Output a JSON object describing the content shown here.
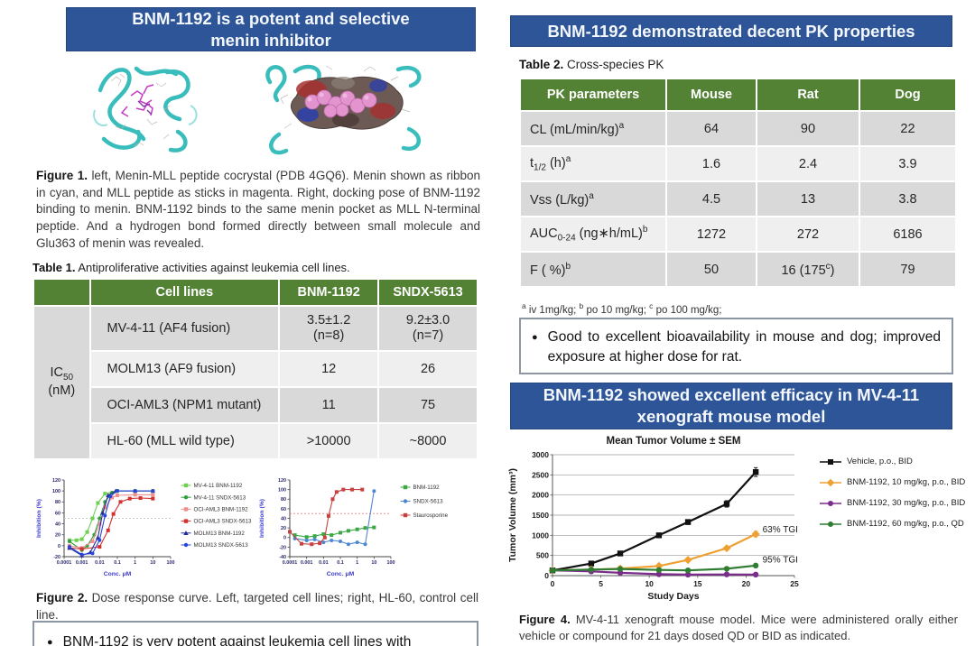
{
  "poster": {
    "colors": {
      "header_blue": "#2E5597",
      "table_green": "#548235",
      "row_dark": "#d9d9d9",
      "row_light": "#efefef"
    },
    "left": {
      "section1_title": "BNM-1192 is a potent and selective menin inhibitor",
      "figure1": {
        "label": "Figure 1.",
        "text": "left, Menin-MLL peptide cocrystal (PDB 4GQ6). Menin shown as ribbon in cyan, and MLL peptide as sticks in magenta. Right, docking pose of BNM-1192 binding to menin. BNM-1192 binds to the same menin pocket as MLL N-terminal peptide. And a hydrogen bond formed directly between small molecule and Glu363 of menin was revealed."
      },
      "table1": {
        "label": "Table 1.",
        "caption": "Antiproliferative activities against leukemia cell lines.",
        "group_label": "IC~50~ (nM)",
        "headers": [
          "",
          "Cell lines",
          "BNM-1192",
          "SNDX-5613"
        ],
        "rows": [
          [
            "MV-4-11 (AF4 fusion)",
            "3.5±1.2\n(n=8)",
            "9.2±3.0\n(n=7)"
          ],
          [
            "MOLM13 (AF9 fusion)",
            "12",
            "26"
          ],
          [
            "OCI-AML3 (NPM1 mutant)",
            "11",
            "75"
          ],
          [
            "HL-60 (MLL wild type)",
            ">10000",
            "~8000"
          ]
        ]
      },
      "figure2": {
        "label": "Figure 2.",
        "text": "Dose response curve. Left, targeted cell lines; right, HL-60, control cell line."
      },
      "bullet": {
        "symbol": "●",
        "text": "BNM-1192 is very potent against leukemia cell lines with"
      }
    },
    "right": {
      "section2_title": "BNM-1192 demonstrated decent PK properties",
      "table2": {
        "label": "Table 2.",
        "caption": "Cross-species PK",
        "headers": [
          "PK parameters",
          "Mouse",
          "Rat",
          "Dog"
        ],
        "rows": [
          [
            "CL (mL/min/kg)^a^",
            "64",
            "90",
            "22"
          ],
          [
            "t~1/2~ (h)^a^",
            "1.6",
            "2.4",
            "3.9"
          ],
          [
            "Vss (L/kg)^a^",
            "4.5",
            "13",
            "3.8"
          ],
          [
            "AUC~0-24~ (ng∗h/mL)^b^",
            "1272",
            "272",
            "6186"
          ],
          [
            "F ( %)^b^",
            "50",
            "16 (175^c^)",
            "79"
          ]
        ],
        "footnote": "^a^ iv 1mg/kg; ^b^ po 10 mg/kg; ^c^ po 100 mg/kg;"
      },
      "bullet": {
        "symbol": "●",
        "text": "Good to excellent bioavailability in mouse and dog; improved exposure at higher dose for rat."
      },
      "section3_title": "BNM-1192 showed excellent efficacy in MV-4-11 xenograft mouse model",
      "figure4": {
        "label": "Figure 4.",
        "text": "MV-4-11 xenograft mouse model. Mice were administered orally either vehicle or compound for 21 days dosed QD or BID as indicated."
      }
    }
  },
  "chart_data": [
    {
      "id": "dose_targeted",
      "type": "line",
      "title": "",
      "xlabel": "Conc. μM",
      "ylabel": "Inhibition (%)",
      "x_scale": "log",
      "xlim": [
        0.0001,
        100
      ],
      "x_ticks": [
        0.0001,
        0.001,
        0.01,
        0.1,
        1,
        10,
        100
      ],
      "ylim": [
        -20,
        120
      ],
      "y_ticks": [
        -20,
        0,
        20,
        40,
        60,
        80,
        100,
        120
      ],
      "refline_y": 50,
      "refline_color": "#c9c9c9",
      "legend_position": "right",
      "grid": "none",
      "series": [
        {
          "name": "MV-4-11 BNM-1192",
          "color": "#6fcf4f",
          "marker": "square",
          "x": [
            0.0002,
            0.0005,
            0.001,
            0.002,
            0.004,
            0.008,
            0.02,
            0.1,
            1,
            10
          ],
          "y": [
            10,
            10,
            12,
            25,
            50,
            78,
            95,
            100,
            100,
            100
          ]
        },
        {
          "name": "MV-4-11 SNDX-5613",
          "color": "#2e9e3a",
          "marker": "circle",
          "x": [
            0.0002,
            0.001,
            0.002,
            0.005,
            0.01,
            0.02,
            0.05,
            0.1,
            1,
            10
          ],
          "y": [
            8,
            -8,
            0,
            20,
            50,
            80,
            97,
            100,
            100,
            100
          ]
        },
        {
          "name": "OCI-AML3 BNM-1192",
          "color": "#ef9090",
          "marker": "square",
          "x": [
            0.0002,
            0.001,
            0.004,
            0.01,
            0.02,
            0.05,
            0.1,
            1,
            10
          ],
          "y": [
            0,
            -4,
            8,
            40,
            70,
            88,
            92,
            93,
            93
          ]
        },
        {
          "name": "OCI-AML3 SNDX-5613",
          "color": "#d33030",
          "marker": "square",
          "x": [
            0.0002,
            0.001,
            0.01,
            0.03,
            0.06,
            0.15,
            0.5,
            2,
            10
          ],
          "y": [
            -4,
            -6,
            -2,
            28,
            58,
            80,
            86,
            87,
            86
          ]
        },
        {
          "name": "MOLM13 BNM-1192",
          "color": "#232d9b",
          "marker": "triangle",
          "x": [
            0.0002,
            0.001,
            0.003,
            0.008,
            0.015,
            0.03,
            0.08,
            1,
            10
          ],
          "y": [
            -4,
            -18,
            -12,
            15,
            60,
            92,
            100,
            100,
            100
          ]
        },
        {
          "name": "MOLM13 SNDX-5613",
          "color": "#2b46d6",
          "marker": "circle",
          "x": [
            0.0002,
            0.001,
            0.004,
            0.01,
            0.02,
            0.04,
            0.1,
            1,
            10
          ],
          "y": [
            -2,
            -16,
            -14,
            10,
            55,
            90,
            100,
            100,
            100
          ]
        }
      ]
    },
    {
      "id": "dose_hl60",
      "type": "line",
      "title": "",
      "xlabel": "Conc. μM",
      "ylabel": "Inhibition (%)",
      "x_scale": "log",
      "xlim": [
        0.0001,
        100
      ],
      "x_ticks": [
        0.0001,
        0.001,
        0.01,
        0.1,
        1,
        10,
        100
      ],
      "ylim": [
        -40,
        120
      ],
      "y_ticks": [
        -40,
        -20,
        0,
        20,
        40,
        60,
        80,
        100,
        120
      ],
      "refline_y": 50,
      "refline_color": "#e08080",
      "legend_position": "right",
      "grid": "none",
      "series": [
        {
          "name": "BNM-1192",
          "color": "#3aa845",
          "marker": "square",
          "x": [
            0.0002,
            0.001,
            0.003,
            0.01,
            0.03,
            0.1,
            0.3,
            1,
            3,
            10
          ],
          "y": [
            5,
            1,
            3,
            7,
            5,
            10,
            14,
            17,
            20,
            21
          ]
        },
        {
          "name": "SNDX-5613",
          "color": "#4d86d1",
          "marker": "circle",
          "x": [
            0.0002,
            0.001,
            0.003,
            0.01,
            0.03,
            0.1,
            0.3,
            1,
            3,
            10
          ],
          "y": [
            -2,
            -6,
            -4,
            -10,
            -6,
            -8,
            -14,
            -10,
            -14,
            97
          ]
        },
        {
          "name": "Staurosporine",
          "color": "#c94040",
          "marker": "square",
          "x": [
            0.0001,
            0.0005,
            0.002,
            0.006,
            0.012,
            0.02,
            0.035,
            0.06,
            0.15,
            0.5,
            2
          ],
          "y": [
            12,
            -13,
            -14,
            -12,
            0,
            45,
            80,
            95,
            100,
            100,
            100
          ]
        }
      ]
    },
    {
      "id": "tumor_volume",
      "type": "line",
      "title": "Mean Tumor Volume ± SEM",
      "xlabel": "Study Days",
      "ylabel": "Tumor Volume (mm³)",
      "x_scale": "linear",
      "xlim": [
        0,
        25
      ],
      "x_ticks": [
        0,
        5,
        10,
        15,
        20,
        25
      ],
      "ylim": [
        0,
        3000
      ],
      "y_ticks": [
        0,
        500,
        1000,
        1500,
        2000,
        2500,
        3000
      ],
      "grid": "horizontal",
      "legend_position": "right",
      "annotations": [
        {
          "text": "63% TGI",
          "x": 21.7,
          "y": 1080
        },
        {
          "text": "95% TGI",
          "x": 21.7,
          "y": 330
        }
      ],
      "series": [
        {
          "name": "Vehicle, p.o., BID",
          "color": "#111111",
          "marker": "square",
          "x": [
            0,
            4,
            7,
            11,
            14,
            18,
            21
          ],
          "y": [
            130,
            300,
            550,
            1000,
            1330,
            1780,
            2570
          ],
          "err": [
            20,
            30,
            40,
            50,
            60,
            80,
            110
          ]
        },
        {
          "name": "BNM-1192, 10 mg/kg, p.o., BID",
          "color": "#efa033",
          "marker": "diamond",
          "x": [
            0,
            4,
            7,
            11,
            14,
            18,
            21
          ],
          "y": [
            130,
            150,
            175,
            240,
            390,
            680,
            1030
          ],
          "err": [
            15,
            15,
            20,
            25,
            35,
            50,
            70
          ]
        },
        {
          "name": "BNM-1192, 30 mg/kg, p.o., BID",
          "color": "#7b2d8b",
          "marker": "circle",
          "x": [
            0,
            4,
            7,
            11,
            14,
            18,
            21
          ],
          "y": [
            130,
            105,
            70,
            35,
            25,
            30,
            25
          ],
          "err": [
            10,
            10,
            10,
            8,
            6,
            6,
            6
          ]
        },
        {
          "name": "BNM-1192, 60 mg/kg, p.o., QD",
          "color": "#2e7d32",
          "marker": "circle",
          "x": [
            0,
            4,
            7,
            11,
            14,
            18,
            21
          ],
          "y": [
            130,
            150,
            165,
            140,
            130,
            170,
            250
          ],
          "err": [
            12,
            12,
            15,
            15,
            15,
            20,
            25
          ]
        }
      ]
    }
  ]
}
